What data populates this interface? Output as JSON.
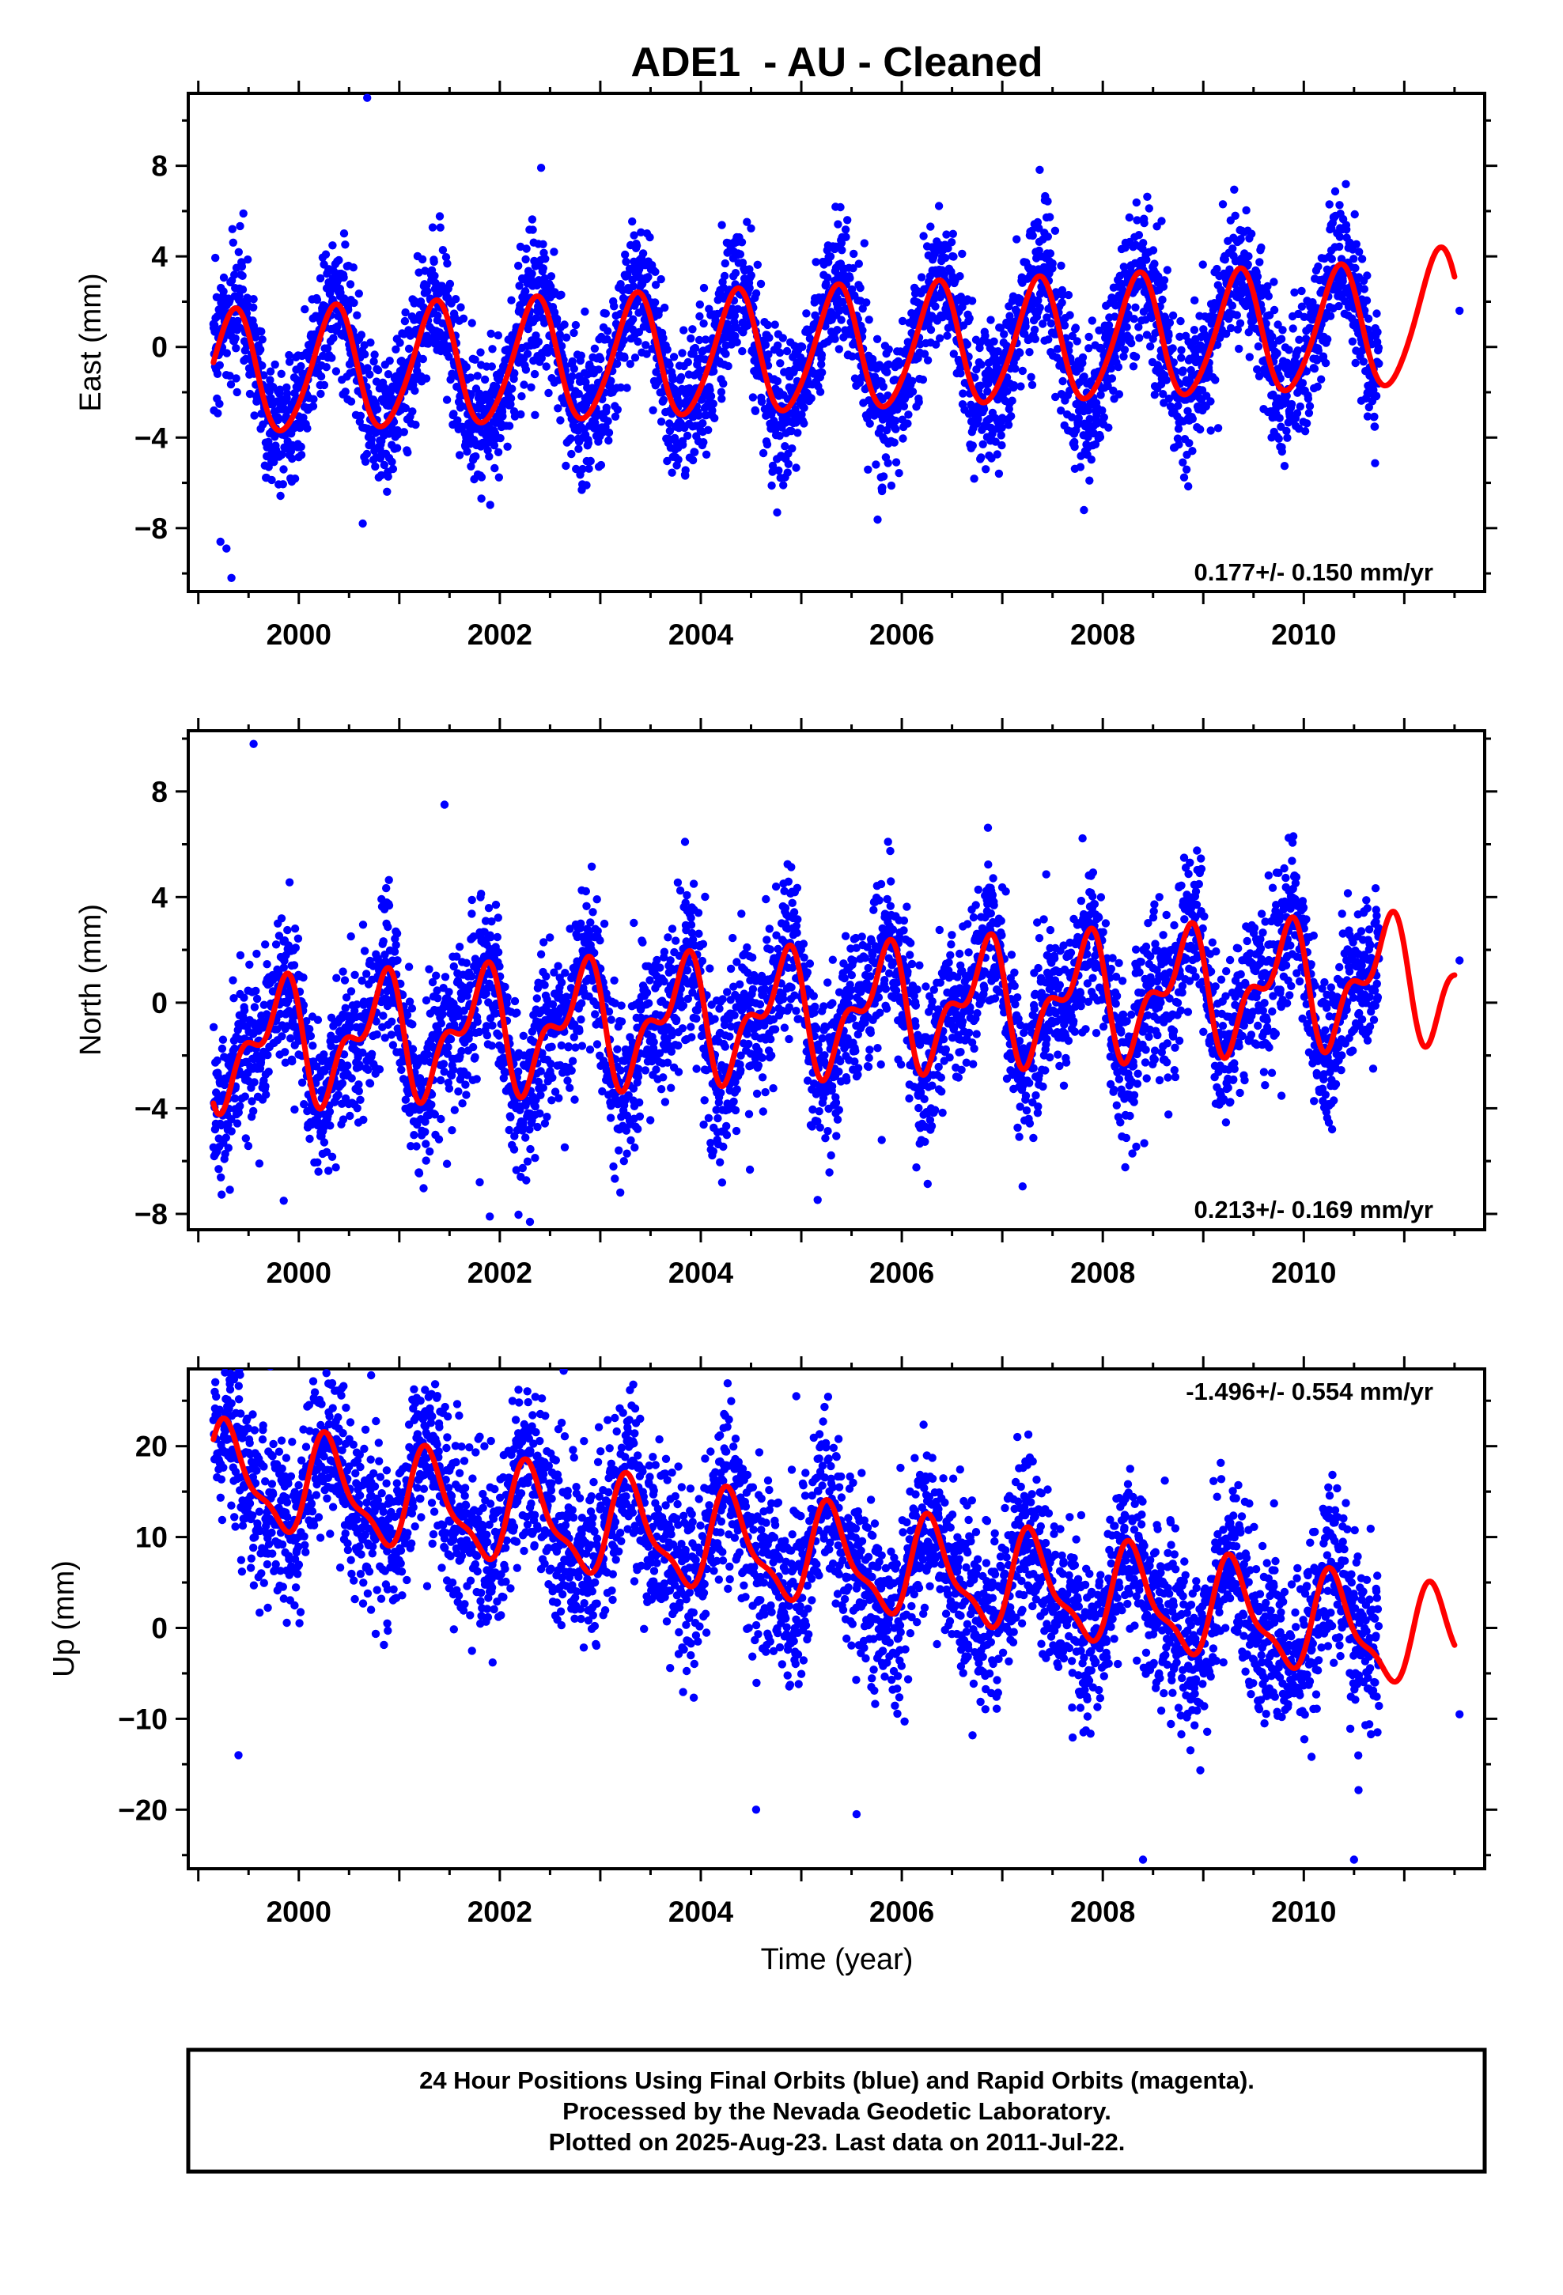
{
  "title": "ADE1  - AU - Cleaned",
  "footer": {
    "lines": [
      "24 Hour Positions Using Final Orbits (blue) and Rapid Orbits (magenta).",
      "Processed by the Nevada Geodetic Laboratory.",
      "Plotted on 2025-Aug-23. Last data on 2011-Jul-22."
    ]
  },
  "colors": {
    "data_points": "#0000ff",
    "model_curve": "#ff0000",
    "frame": "#000000"
  },
  "chart_data": [
    {
      "type": "scatter",
      "ylabel": "East (mm)",
      "xlabel": "",
      "xlim": [
        1998.9,
        2011.8
      ],
      "ylim": [
        -10.8,
        11.2
      ],
      "x_ticks": [
        2000,
        2002,
        2004,
        2006,
        2008,
        2010
      ],
      "x_tick_labels": [
        "2000",
        "2002",
        "2004",
        "2006",
        "2008",
        "2010"
      ],
      "y_ticks": [
        -8,
        -4,
        0,
        4,
        8
      ],
      "y_tick_labels": [
        "−8",
        "−4",
        "0",
        "4",
        "8"
      ],
      "rate_text": "0.177+/- 0.150 mm/yr",
      "rate_position": "bottom-right",
      "data_range": [
        1999.15,
        2010.75
      ],
      "model": {
        "start": 1999.15,
        "end": 2011.5,
        "offset": -0.2,
        "trend": 0.177,
        "amp1": 2.7,
        "phase1": 0.1,
        "amp2": 0.3,
        "phase2": 0.3,
        "hump": [
          {
            "t0": 2011.3,
            "amp": 0.6,
            "sigma": 0.3
          }
        ]
      },
      "noise_sd": 1.55,
      "outliers": [
        [
          2000.68,
          11.0
        ],
        [
          1999.22,
          -8.6
        ],
        [
          1999.33,
          -10.2
        ],
        [
          1999.28,
          -8.9
        ]
      ],
      "isolated_points": [
        [
          2011.55,
          1.6
        ]
      ]
    },
    {
      "type": "scatter",
      "ylabel": "North (mm)",
      "xlabel": "",
      "xlim": [
        1998.9,
        2011.8
      ],
      "ylim": [
        -8.6,
        10.3
      ],
      "x_ticks": [
        2000,
        2002,
        2004,
        2006,
        2008,
        2010
      ],
      "x_tick_labels": [
        "2000",
        "2002",
        "2004",
        "2006",
        "2008",
        "2010"
      ],
      "y_ticks": [
        -8,
        -4,
        0,
        4,
        8
      ],
      "y_tick_labels": [
        "−8",
        "−4",
        "0",
        "4",
        "8"
      ],
      "rate_text": "0.213+/- 0.169 mm/yr",
      "rate_position": "bottom-right",
      "data_range": [
        1999.15,
        2010.75
      ],
      "model": {
        "start": 1999.15,
        "end": 2011.5,
        "offset": -0.4,
        "trend": 0.213,
        "amp1": 1.9,
        "phase1": 0.55,
        "amp2": 1.1,
        "phase2": 0.3,
        "hump": []
      },
      "noise_sd": 1.5,
      "outliers": [
        [
          1999.55,
          9.8
        ],
        [
          2001.8,
          -6.8
        ],
        [
          2001.9,
          -8.1
        ],
        [
          2002.3,
          -8.3
        ],
        [
          1999.85,
          -7.5
        ],
        [
          1999.3,
          -5.5
        ],
        [
          2001.45,
          7.5
        ],
        [
          2005.8,
          -5.2
        ]
      ],
      "isolated_points": [
        [
          2011.55,
          1.6
        ]
      ]
    },
    {
      "type": "scatter",
      "ylabel": "Up (mm)",
      "xlabel": "Time (year)",
      "xlim": [
        1998.9,
        2011.8
      ],
      "ylim": [
        -26.5,
        28.5
      ],
      "x_ticks": [
        2000,
        2002,
        2004,
        2006,
        2008,
        2010
      ],
      "x_tick_labels": [
        "2000",
        "2002",
        "2004",
        "2006",
        "2008",
        "2010"
      ],
      "y_ticks": [
        -20,
        -10,
        0,
        10,
        20
      ],
      "y_tick_labels": [
        "−20",
        "−10",
        "0",
        "10",
        "20"
      ],
      "rate_text": "-1.496+/- 0.554 mm/yr",
      "rate_position": "top-right",
      "data_range": [
        1999.15,
        2010.75
      ],
      "model": {
        "start": 1999.15,
        "end": 2011.5,
        "offset": 8.0,
        "trend": -1.496,
        "amp1": 5.0,
        "phase1": 0.05,
        "amp2": 1.8,
        "phase2": 0.1,
        "hump": []
      },
      "noise_sd": 4.8,
      "outliers": [
        [
          2000.72,
          27.8
        ],
        [
          2004.95,
          25.5
        ],
        [
          2008.4,
          -25.5
        ],
        [
          2010.5,
          -25.5
        ],
        [
          2005.55,
          -20.5
        ],
        [
          2004.55,
          -20.0
        ],
        [
          1999.4,
          -14.0
        ]
      ],
      "isolated_points": [
        [
          2011.55,
          -9.5
        ]
      ]
    }
  ]
}
